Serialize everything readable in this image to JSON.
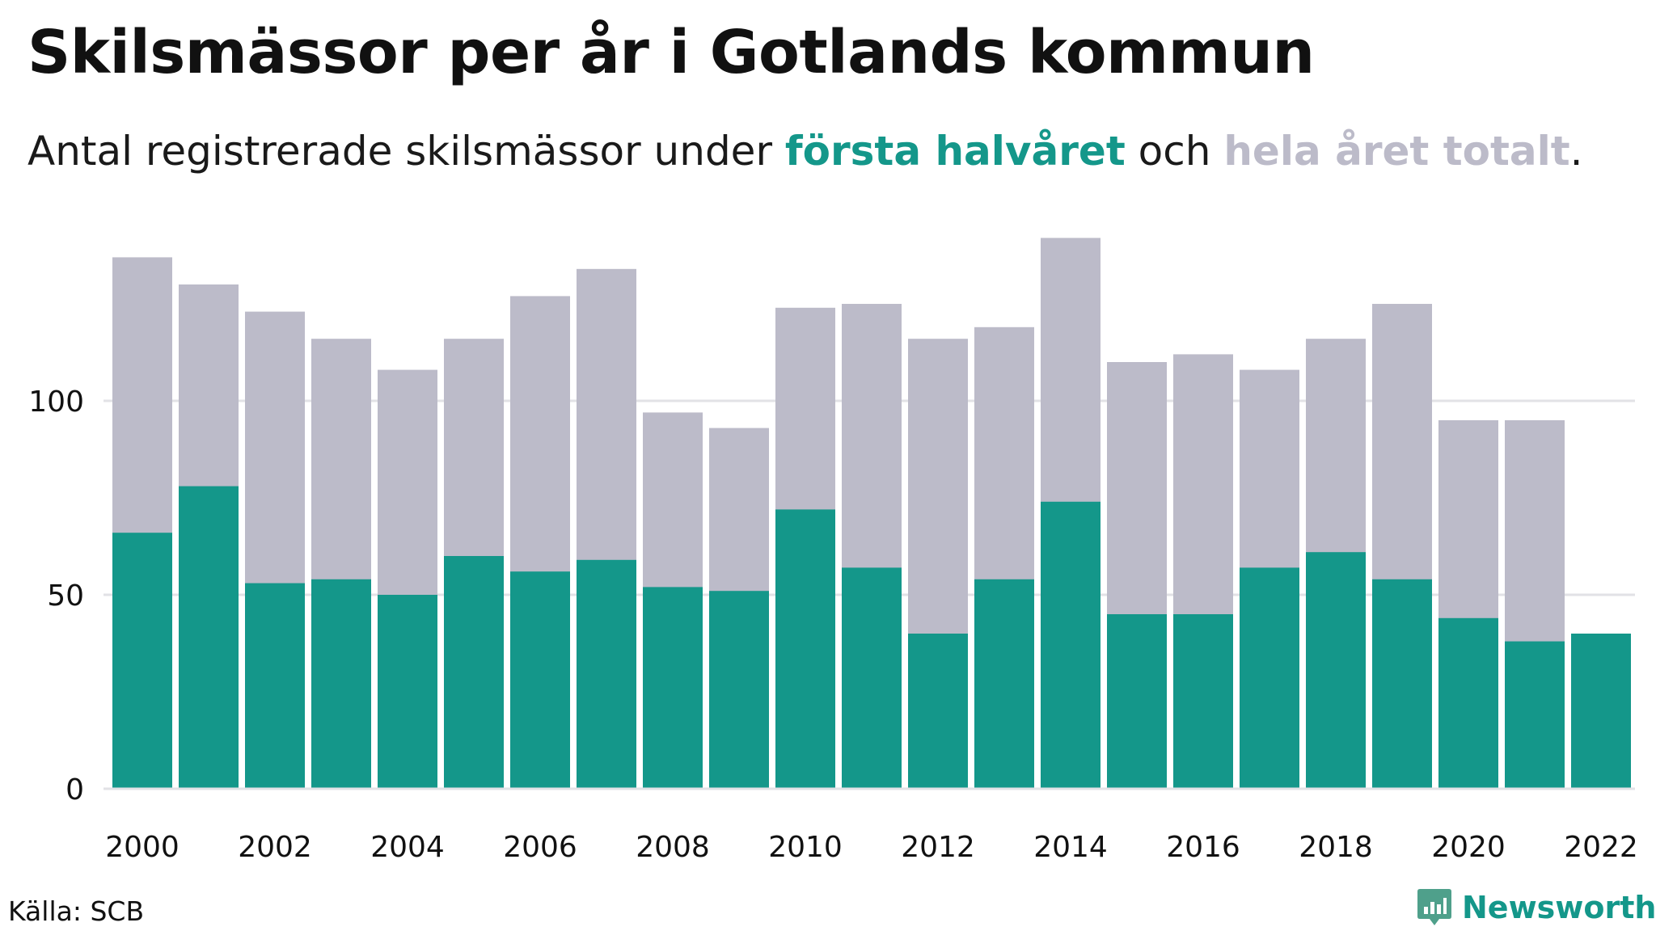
{
  "header": {
    "title": "Skilsmässor per år i Gotlands kommun",
    "subtitle_prefix": "Antal registrerade skilsmässor under ",
    "subtitle_first_half": "första halvåret",
    "subtitle_middle": " och ",
    "subtitle_full_year": "hela året totalt",
    "subtitle_suffix": "."
  },
  "footer": {
    "source": "Källa: SCB",
    "brand": "Newsworthy"
  },
  "colors": {
    "first_half": "#14978a",
    "full_year": "#bcbbc9",
    "grid": "#e2e2e6",
    "axis_text": "#111111",
    "brand_icon": "#4fa08b"
  },
  "chart_data": {
    "type": "bar",
    "stacking": "overlay",
    "x": [
      2000,
      2001,
      2002,
      2003,
      2004,
      2005,
      2006,
      2007,
      2008,
      2009,
      2010,
      2011,
      2012,
      2013,
      2014,
      2015,
      2016,
      2017,
      2018,
      2019,
      2020,
      2021,
      2022
    ],
    "series": [
      {
        "key": "full_year",
        "values": [
          137,
          130,
          123,
          116,
          108,
          116,
          127,
          134,
          97,
          93,
          124,
          125,
          116,
          119,
          142,
          110,
          112,
          108,
          116,
          125,
          95,
          95,
          null
        ]
      },
      {
        "key": "first_half",
        "values": [
          66,
          78,
          53,
          54,
          50,
          60,
          56,
          59,
          52,
          51,
          72,
          57,
          40,
          54,
          74,
          45,
          45,
          57,
          61,
          54,
          44,
          38,
          40
        ]
      }
    ],
    "x_tick_labels": [
      "2000",
      "2002",
      "2004",
      "2006",
      "2008",
      "2010",
      "2012",
      "2014",
      "2016",
      "2018",
      "2020",
      "2022"
    ],
    "y_ticks": [
      0,
      50,
      100
    ],
    "ylim": [
      0,
      145
    ],
    "grid": true,
    "legend": "in subtitle"
  }
}
